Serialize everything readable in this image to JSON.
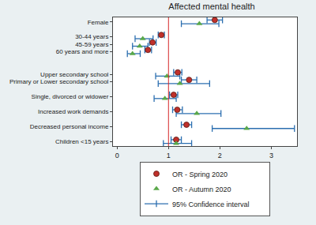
{
  "chart_data": {
    "type": "forest",
    "title": "Affected mental health",
    "orientation": "horizontal",
    "categories": [
      "Female",
      null,
      "30-44 years",
      "45-59 years",
      "60 years and more",
      null,
      null,
      "Upper secondary school",
      "Primary or Lower secondary school",
      null,
      "Single, divorced or widower",
      null,
      "Increased work demands",
      null,
      "Decreased personal income",
      null,
      "Children <15 years"
    ],
    "series": [
      {
        "name": "OR - Spring 2020",
        "color": "#c0302b",
        "marker": "circle",
        "values": [
          1.9,
          null,
          0.86,
          0.69,
          0.6,
          null,
          null,
          1.18,
          1.4,
          null,
          1.1,
          null,
          1.17,
          null,
          1.35,
          null,
          1.15
        ],
        "ci_low": [
          1.75,
          null,
          0.8,
          0.63,
          0.54,
          null,
          null,
          1.1,
          1.25,
          null,
          1.02,
          null,
          1.08,
          null,
          1.25,
          null,
          1.05
        ],
        "ci_high": [
          2.05,
          null,
          0.92,
          0.76,
          0.67,
          null,
          null,
          1.26,
          1.55,
          null,
          1.18,
          null,
          1.27,
          null,
          1.45,
          null,
          1.25
        ]
      },
      {
        "name": "OR - Autumn 2020",
        "color": "#5aa84a",
        "marker": "triangle-up",
        "values": [
          1.6,
          null,
          0.5,
          0.44,
          0.3,
          null,
          null,
          0.97,
          1.22,
          null,
          0.93,
          null,
          1.55,
          null,
          2.52,
          null,
          1.15
        ],
        "ci_low": [
          1.25,
          null,
          0.35,
          0.3,
          0.2,
          null,
          null,
          0.75,
          0.8,
          null,
          0.72,
          null,
          1.15,
          null,
          1.85,
          null,
          0.9
        ],
        "ci_high": [
          1.98,
          null,
          0.7,
          0.6,
          0.45,
          null,
          null,
          1.22,
          1.8,
          null,
          1.15,
          null,
          2.02,
          null,
          3.45,
          null,
          1.45
        ]
      }
    ],
    "confidence_interval": {
      "name": "95% Confidence interval",
      "color": "#2c6fb0"
    },
    "reference": 1,
    "reference_color": "#d62728",
    "xlim": [
      -0.08,
      3.5
    ],
    "xticks": [
      0,
      1,
      2,
      3
    ],
    "grid": false,
    "legend": "bottom"
  }
}
